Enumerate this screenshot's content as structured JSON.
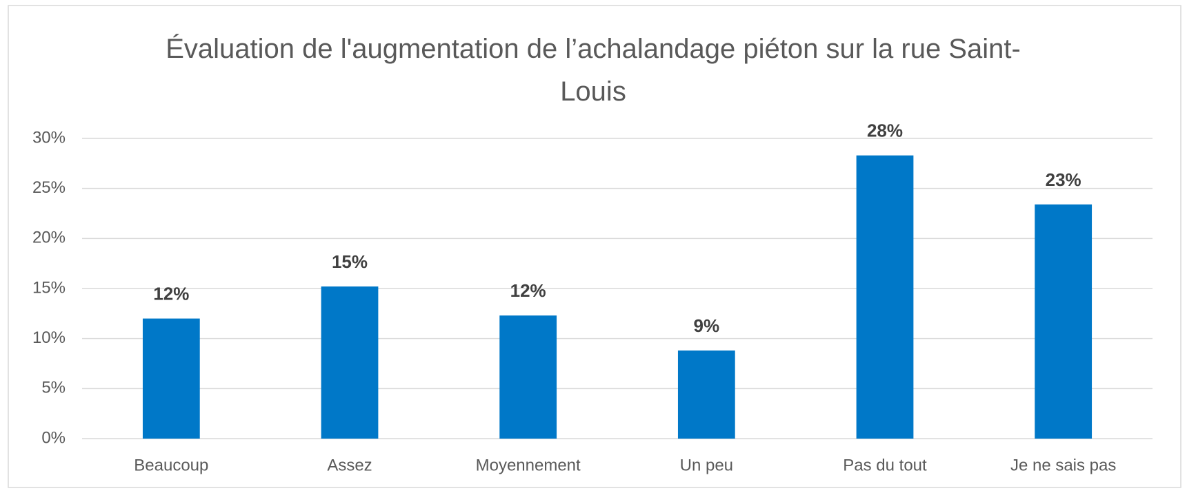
{
  "chart_data": {
    "type": "bar",
    "title": "Évaluation de l'augmentation de l’achalandage piéton sur la rue Saint-Louis",
    "categories": [
      "Beaucoup",
      "Assez",
      "Moyennement",
      "Un peu",
      "Pas du tout",
      "Je ne sais pas"
    ],
    "values": [
      12.0,
      15.2,
      12.3,
      8.8,
      28.3,
      23.4
    ],
    "value_labels": [
      "12%",
      "15%",
      "12%",
      "9%",
      "28%",
      "23%"
    ],
    "color": "#0078c8",
    "ylim": [
      0,
      30
    ],
    "yticks": [
      {
        "value": 0,
        "label": "0%"
      },
      {
        "value": 5,
        "label": "5%"
      },
      {
        "value": 10,
        "label": "10%"
      },
      {
        "value": 15,
        "label": "15%"
      },
      {
        "value": 20,
        "label": "20%"
      },
      {
        "value": 25,
        "label": "25%"
      },
      {
        "value": 30,
        "label": "30%"
      }
    ],
    "grid": true
  }
}
